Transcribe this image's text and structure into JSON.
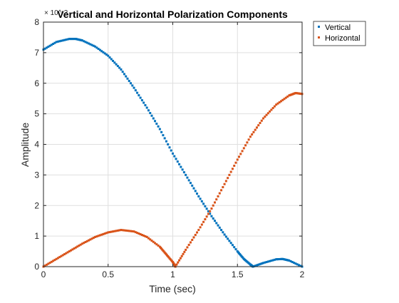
{
  "chart_data": {
    "type": "scatter",
    "title": "Vertical and Horizontal Polarization Components",
    "xlabel": "Time (sec)",
    "ylabel": "Amplitude",
    "y_exponent_label": "× 10^-3",
    "xlim": [
      0,
      2
    ],
    "ylim": [
      0,
      8
    ],
    "x_ticks": [
      "0",
      "0.5",
      "1",
      "1.5",
      "2"
    ],
    "y_ticks": [
      "0",
      "1",
      "2",
      "3",
      "4",
      "5",
      "6",
      "7",
      "8"
    ],
    "grid": true,
    "legend_placement": "outside-top-right",
    "series": [
      {
        "name": "Vertical",
        "color": "#0072BD",
        "x": [
          0,
          0.1,
          0.2,
          0.25,
          0.3,
          0.4,
          0.5,
          0.6,
          0.7,
          0.8,
          0.9,
          1.0,
          1.1,
          1.2,
          1.3,
          1.4,
          1.5,
          1.55,
          1.6,
          1.62,
          1.7,
          1.8,
          1.85,
          1.9,
          2.0
        ],
        "y": [
          7.1,
          7.35,
          7.45,
          7.45,
          7.4,
          7.2,
          6.9,
          6.45,
          5.85,
          5.2,
          4.5,
          3.7,
          3.0,
          2.3,
          1.65,
          1.05,
          0.5,
          0.25,
          0.07,
          0.0,
          0.12,
          0.24,
          0.25,
          0.2,
          0.0
        ]
      },
      {
        "name": "Horizontal",
        "color": "#D95319",
        "x": [
          0,
          0.1,
          0.2,
          0.3,
          0.4,
          0.5,
          0.6,
          0.7,
          0.8,
          0.9,
          0.95,
          1.0,
          1.02,
          1.1,
          1.2,
          1.3,
          1.4,
          1.5,
          1.6,
          1.7,
          1.8,
          1.9,
          1.95,
          2.0
        ],
        "y": [
          0,
          0.25,
          0.5,
          0.75,
          0.97,
          1.12,
          1.2,
          1.15,
          0.97,
          0.65,
          0.4,
          0.15,
          0.0,
          0.55,
          1.2,
          1.9,
          2.7,
          3.5,
          4.25,
          4.85,
          5.3,
          5.6,
          5.68,
          5.65
        ]
      }
    ]
  }
}
